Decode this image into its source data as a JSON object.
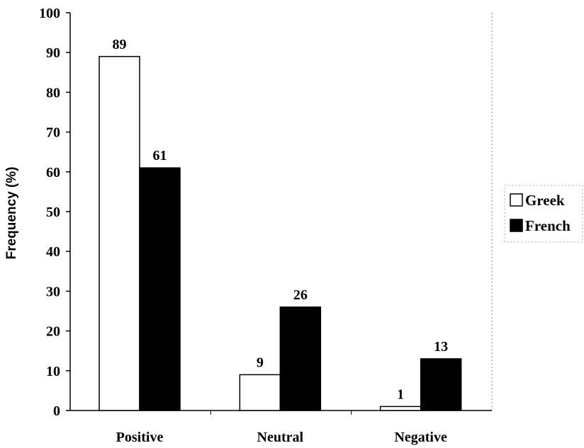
{
  "chart_data": {
    "type": "bar",
    "categories": [
      "Positive",
      "Neutral",
      "Negative"
    ],
    "series": [
      {
        "name": "Greek",
        "values": [
          89,
          9,
          1
        ],
        "color": "#ffffff"
      },
      {
        "name": "French",
        "values": [
          61,
          26,
          13
        ],
        "color": "#000000"
      }
    ],
    "ylabel": "Frequency (%)",
    "xlabel": "",
    "ylim": [
      0,
      100
    ],
    "yticks": [
      0,
      10,
      20,
      30,
      40,
      50,
      60,
      70,
      80,
      90,
      100
    ],
    "data_labels": true,
    "legend_position": "right",
    "grid": false
  }
}
